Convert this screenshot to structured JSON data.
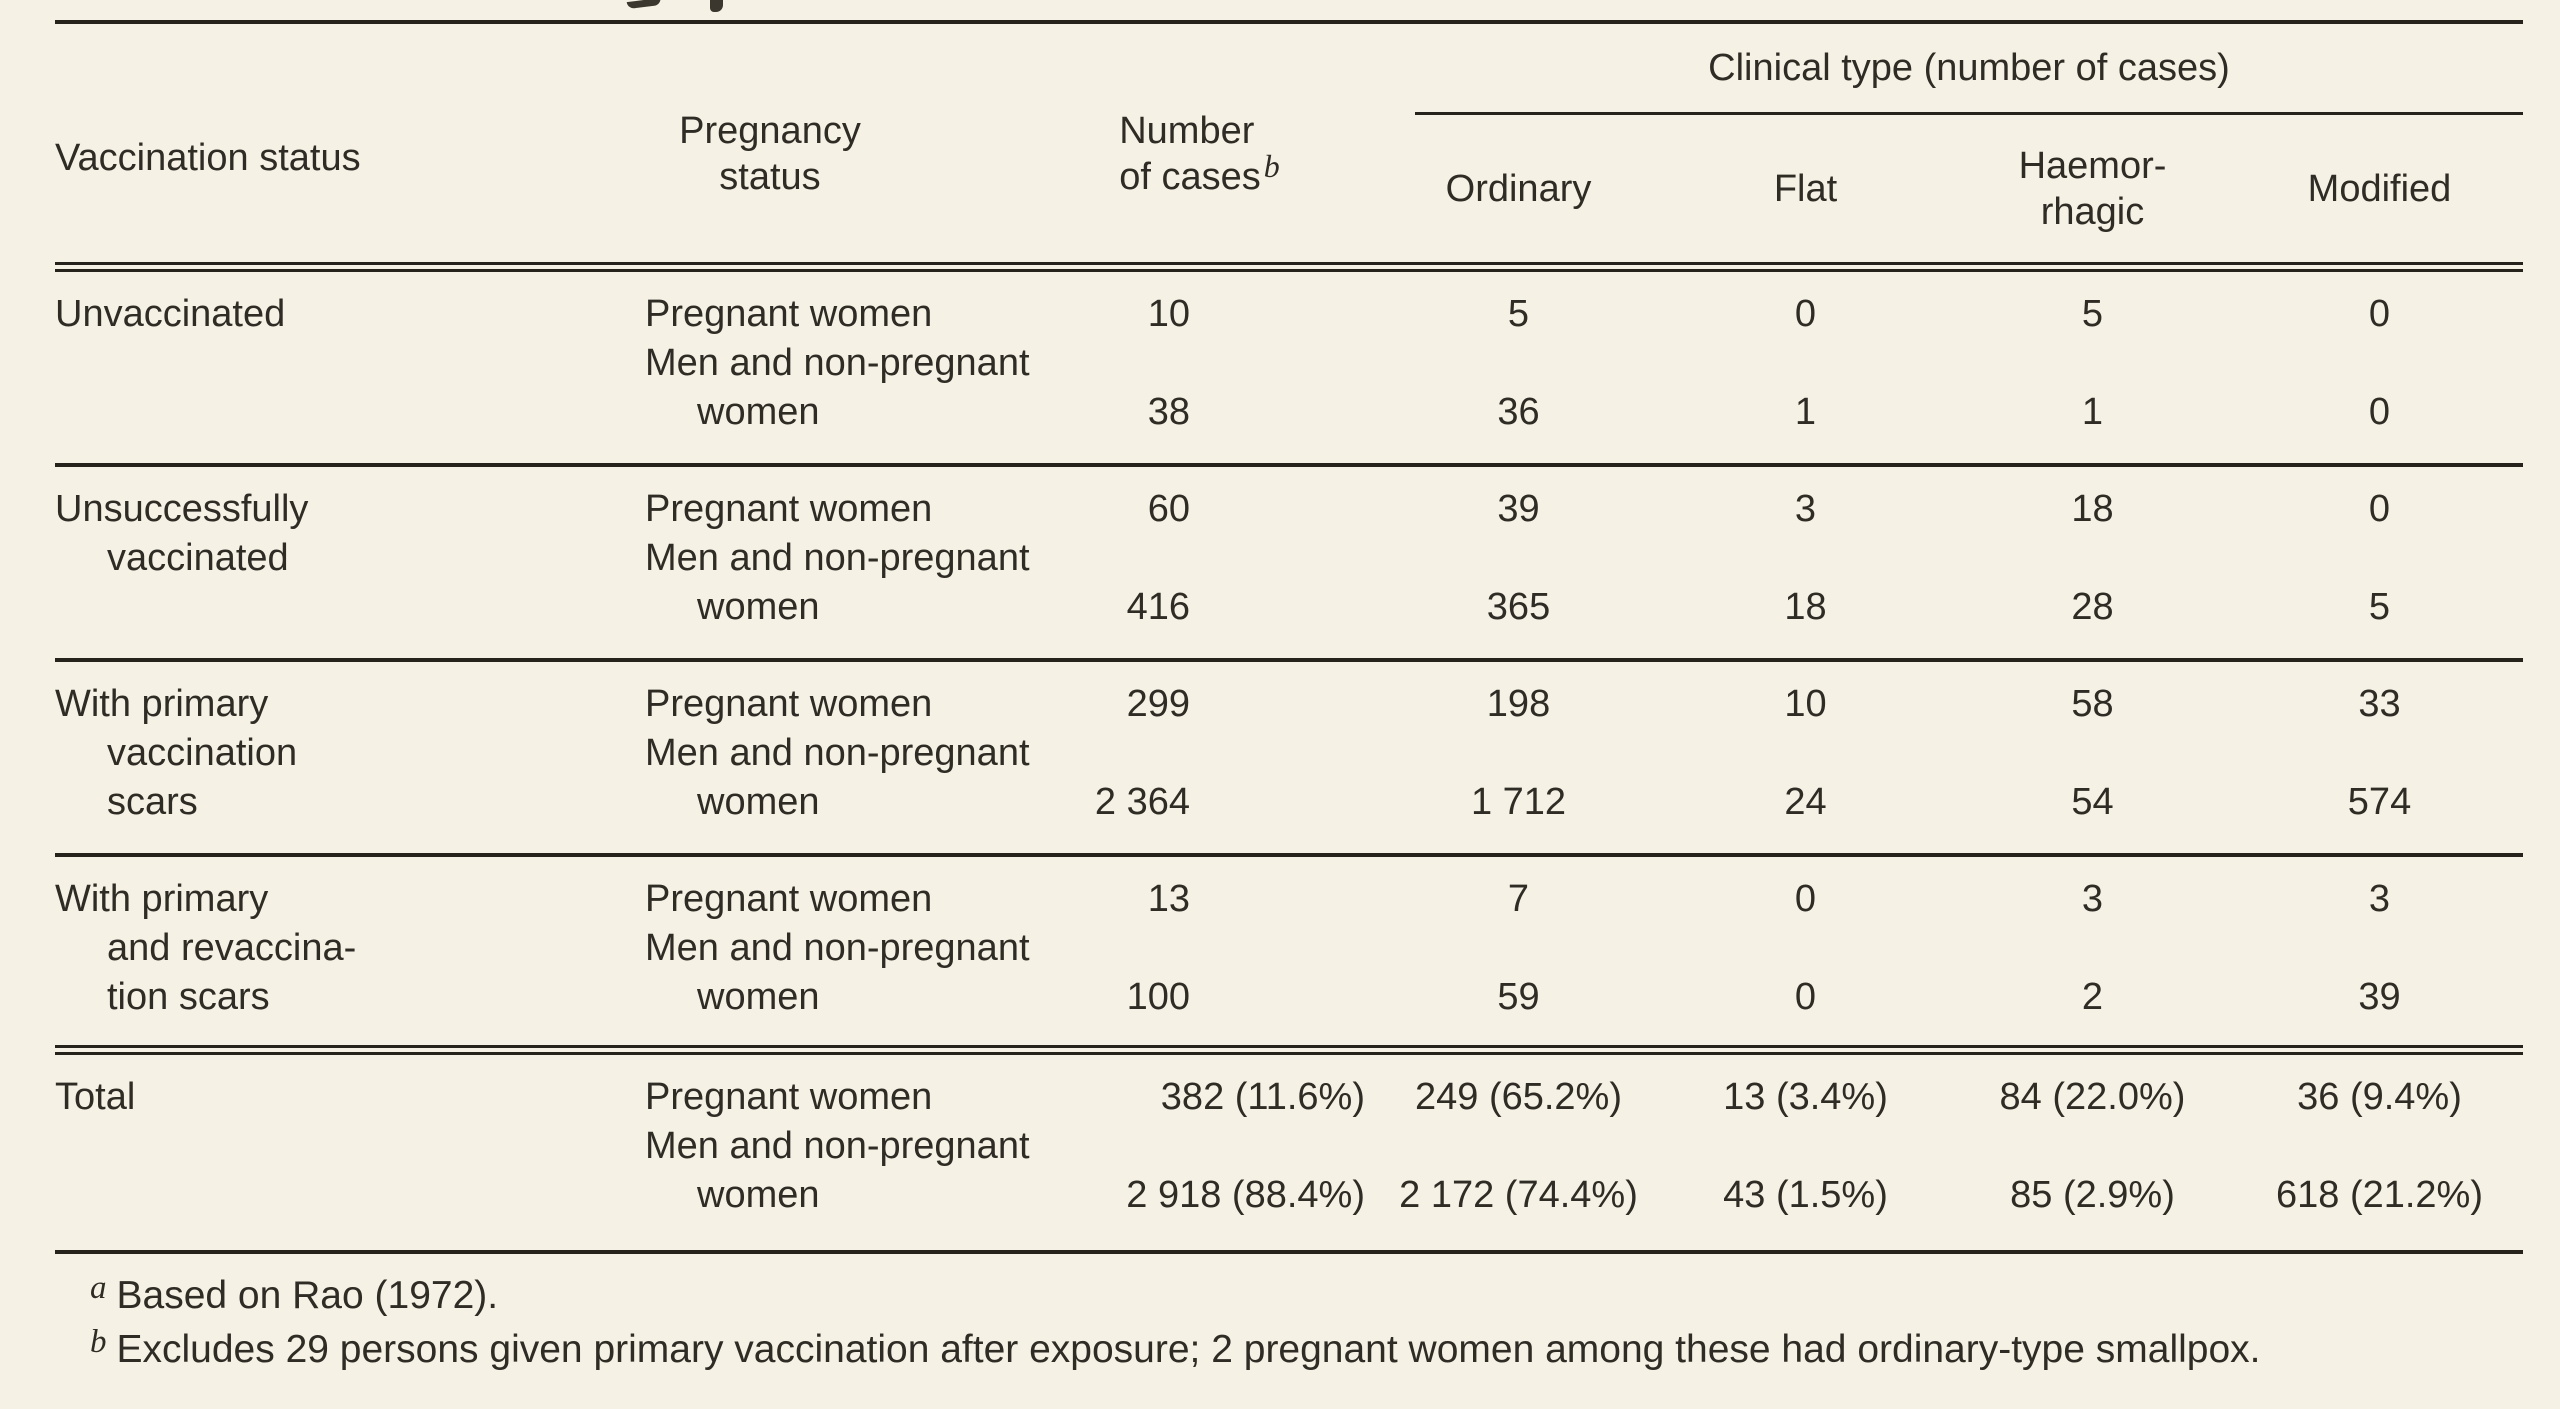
{
  "page": {
    "background_color": "#f5f1e5",
    "ink_color": "#2f2c26",
    "rule_color": "#26231d",
    "description": "Scanned book table: smallpox clinical types by vaccination and pregnancy status"
  },
  "header": {
    "vaccination_status": "Vaccination status",
    "pregnancy_status": "Pregnancy\nstatus",
    "cases_l1": "Number",
    "cases_l2": "of cases",
    "cases_footnote_marker": "b",
    "clinical_group": "Clinical type (number of cases)",
    "col_ordinary": "Ordinary",
    "col_flat": "Flat",
    "col_haemorrhagic": "Haemor-\nrhagic",
    "col_modified": "Modified"
  },
  "labels": {
    "pregnant": "Pregnant women",
    "men_l1": "Men and non-pregnant",
    "men_l2": "women"
  },
  "chart_data": {
    "type": "table",
    "columns": [
      "Vaccination status",
      "Pregnancy status",
      "Number of cases",
      "Ordinary",
      "Flat",
      "Haemorrhagic",
      "Modified"
    ],
    "blocks": [
      {
        "label_lines": [
          "Unvaccinated"
        ],
        "preg": [
          "10",
          "5",
          "0",
          "5",
          "0"
        ],
        "men": [
          "38",
          "36",
          "1",
          "1",
          "0"
        ]
      },
      {
        "label_lines": [
          "Unsuccessfully",
          "vaccinated"
        ],
        "preg": [
          "60",
          "39",
          "3",
          "18",
          "0"
        ],
        "men": [
          "416",
          "365",
          "18",
          "28",
          "5"
        ]
      },
      {
        "label_lines": [
          "With primary",
          "vaccination",
          "scars"
        ],
        "preg": [
          "299",
          "198",
          "10",
          "58",
          "33"
        ],
        "men": [
          "2 364",
          "1 712",
          "24",
          "54",
          "574"
        ]
      },
      {
        "label_lines": [
          "With primary",
          "and revaccina-",
          "tion scars"
        ],
        "preg": [
          "13",
          "7",
          "0",
          "3",
          "3"
        ],
        "men": [
          "100",
          "59",
          "0",
          "2",
          "39"
        ]
      },
      {
        "label_lines": [
          "Total"
        ],
        "preg": [
          "382 (11.6%)",
          "249 (65.2%)",
          "13 (3.4%)",
          "84 (22.0%)",
          "36 (9.4%)"
        ],
        "men": [
          "2 918 (88.4%)",
          "2 172 (74.4%)",
          "43 (1.5%)",
          "85 (2.9%)",
          "618 (21.2%)"
        ]
      }
    ]
  },
  "footnotes": [
    {
      "marker": "a",
      "text": "Based on Rao (1972)."
    },
    {
      "marker": "b",
      "text": "Excludes 29 persons given primary vaccination after exposure; 2 pregnant women among these had ordinary-type smallpox."
    }
  ]
}
